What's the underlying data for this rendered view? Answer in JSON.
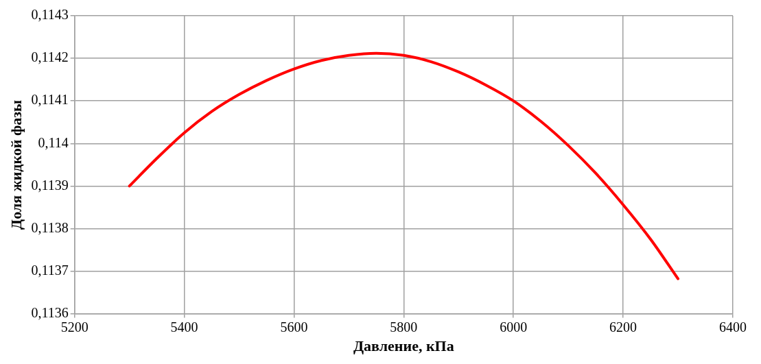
{
  "chart_data": {
    "type": "line",
    "xlabel": "Давление, кПа",
    "ylabel": "Доля жидкой фазы",
    "x": [
      5300,
      5350,
      5400,
      5450,
      5500,
      5550,
      5600,
      5650,
      5700,
      5750,
      5800,
      5850,
      5900,
      5950,
      6000,
      6050,
      6100,
      6150,
      6200,
      6250,
      6300
    ],
    "series": [
      {
        "color": "#ff0000",
        "values": [
          0.1139,
          0.113965,
          0.114025,
          0.114075,
          0.114115,
          0.114148,
          0.114175,
          0.114195,
          0.114207,
          0.114212,
          0.114207,
          0.114192,
          0.114168,
          0.114137,
          0.1141,
          0.114052,
          0.113995,
          0.11393,
          0.113856,
          0.113775,
          0.113682
        ]
      }
    ],
    "xlim": [
      5200,
      6400
    ],
    "xticks": [
      5200,
      5400,
      5600,
      5800,
      6000,
      6200,
      6400
    ],
    "ylim": [
      0.1136,
      0.1143
    ],
    "yticks": [
      {
        "value": 0.1136,
        "label": "0,1136"
      },
      {
        "value": 0.1137,
        "label": "0,1137"
      },
      {
        "value": 0.1138,
        "label": "0,1138"
      },
      {
        "value": 0.1139,
        "label": "0,1139"
      },
      {
        "value": 0.114,
        "label": "0,114"
      },
      {
        "value": 0.1141,
        "label": "0,1141"
      },
      {
        "value": 0.1142,
        "label": "0,1142"
      },
      {
        "value": 0.1143,
        "label": "0,1143"
      }
    ],
    "grid": true,
    "legend": false,
    "marker": "none",
    "line_style": "solid"
  }
}
